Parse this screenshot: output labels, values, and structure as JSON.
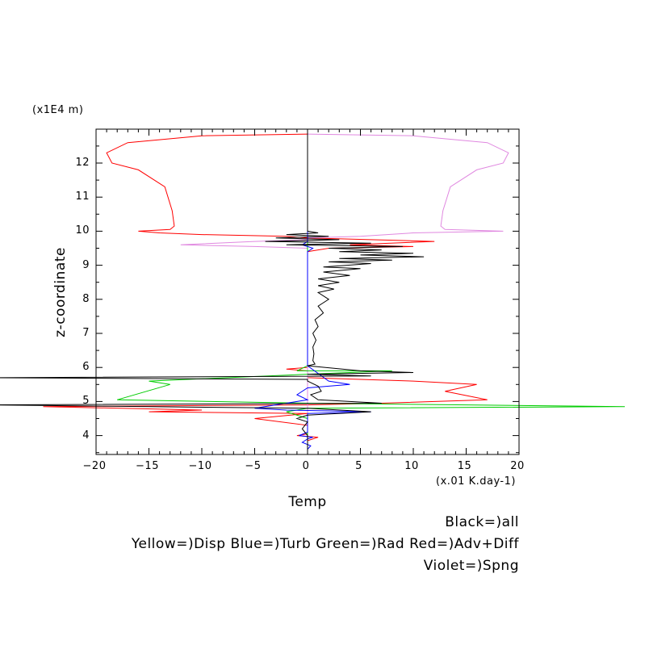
{
  "chart_data": {
    "type": "line",
    "xlabel": "Temp",
    "ylabel": "z-coordinate",
    "x_unit": "(x.01 K.day-1)",
    "y_unit": "(x1E4 m)",
    "xlim": [
      -20,
      20
    ],
    "ylim": [
      3.55,
      12.85
    ],
    "xticks": [
      -20,
      -15,
      -10,
      -5,
      0,
      5,
      10,
      15,
      20
    ],
    "yticks": [
      4,
      5,
      6,
      7,
      8,
      9,
      10,
      11,
      12
    ],
    "grid": false,
    "legend": [
      "Black=)all",
      "Yellow=)Disp Blue=)Turb Green=)Rad Red=)Adv+Diff",
      "Violet=)Spng"
    ],
    "colors": {
      "all": "#000000",
      "disp": "#ffff00",
      "turb": "#0000ff",
      "rad": "#00cc00",
      "advdiff": "#ff0000",
      "spng": "#e088e0"
    },
    "series": [
      {
        "key": "advdiff",
        "points": [
          [
            0,
            12.85
          ],
          [
            -10,
            12.8
          ],
          [
            -17,
            12.6
          ],
          [
            -19,
            12.3
          ],
          [
            -18.5,
            12.0
          ],
          [
            -16,
            11.8
          ],
          [
            -13.5,
            11.3
          ],
          [
            -12.8,
            10.6
          ],
          [
            -12.6,
            10.15
          ],
          [
            -13,
            10.05
          ],
          [
            -16,
            10.0
          ],
          [
            -14,
            9.95
          ],
          [
            -10,
            9.9
          ],
          [
            -2,
            9.85
          ],
          [
            0,
            9.8
          ],
          [
            12,
            9.7
          ],
          [
            4,
            9.6
          ],
          [
            10,
            9.55
          ],
          [
            2,
            9.5
          ],
          [
            0,
            9.4
          ],
          [
            0,
            6.0
          ],
          [
            -2,
            5.95
          ],
          [
            0,
            5.9
          ],
          [
            0,
            5.7
          ],
          [
            10,
            5.6
          ],
          [
            16,
            5.5
          ],
          [
            13,
            5.3
          ],
          [
            17,
            5.05
          ],
          [
            7,
            4.95
          ],
          [
            0,
            4.9
          ],
          [
            -25,
            4.85
          ],
          [
            -10,
            4.75
          ],
          [
            -15,
            4.7
          ],
          [
            0,
            4.65
          ],
          [
            -5,
            4.5
          ],
          [
            0,
            4.3
          ],
          [
            0,
            4.05
          ],
          [
            -1,
            4.0
          ],
          [
            1,
            3.95
          ],
          [
            0,
            3.85
          ],
          [
            0,
            3.6
          ]
        ]
      },
      {
        "key": "spng",
        "points": [
          [
            0,
            12.85
          ],
          [
            10,
            12.8
          ],
          [
            17,
            12.6
          ],
          [
            19,
            12.3
          ],
          [
            18.5,
            12.0
          ],
          [
            16,
            11.8
          ],
          [
            13.5,
            11.3
          ],
          [
            12.8,
            10.6
          ],
          [
            12.6,
            10.15
          ],
          [
            13,
            10.05
          ],
          [
            18.5,
            10.0
          ],
          [
            10,
            9.95
          ],
          [
            5,
            9.85
          ],
          [
            0,
            9.8
          ],
          [
            0,
            9.75
          ],
          [
            -5,
            9.7
          ],
          [
            -12,
            9.6
          ],
          [
            -5,
            9.55
          ],
          [
            0,
            9.5
          ],
          [
            0,
            3.6
          ]
        ]
      },
      {
        "key": "rad",
        "points": [
          [
            0,
            10.5
          ],
          [
            0,
            6.05
          ],
          [
            -1,
            5.9
          ],
          [
            8,
            5.9
          ],
          [
            0,
            5.8
          ],
          [
            -15,
            5.6
          ],
          [
            -13,
            5.5
          ],
          [
            -18,
            5.05
          ],
          [
            0,
            4.95
          ],
          [
            30,
            4.85
          ],
          [
            0,
            4.8
          ],
          [
            -2,
            4.7
          ],
          [
            0,
            4.5
          ],
          [
            0,
            3.6
          ]
        ]
      },
      {
        "key": "turb",
        "points": [
          [
            0,
            10.5
          ],
          [
            0,
            9.7
          ],
          [
            -0.5,
            9.6
          ],
          [
            0.5,
            9.5
          ],
          [
            0,
            9.4
          ],
          [
            0,
            6.05
          ],
          [
            2,
            5.6
          ],
          [
            4,
            5.5
          ],
          [
            0,
            5.4
          ],
          [
            -1,
            5.2
          ],
          [
            0,
            5.05
          ],
          [
            -2,
            4.95
          ],
          [
            -5,
            4.8
          ],
          [
            -2,
            4.75
          ],
          [
            6,
            4.7
          ],
          [
            0,
            4.65
          ],
          [
            0,
            4.1
          ],
          [
            -0.8,
            4.0
          ],
          [
            0.5,
            3.95
          ],
          [
            0,
            3.9
          ],
          [
            -0.5,
            3.8
          ],
          [
            0.3,
            3.7
          ],
          [
            0,
            3.6
          ]
        ]
      },
      {
        "key": "all",
        "points": [
          [
            0,
            12.85
          ],
          [
            0,
            10.0
          ],
          [
            1,
            9.95
          ],
          [
            -2,
            9.9
          ],
          [
            2,
            9.85
          ],
          [
            -3,
            9.8
          ],
          [
            3,
            9.75
          ],
          [
            -4,
            9.7
          ],
          [
            6,
            9.65
          ],
          [
            -2,
            9.6
          ],
          [
            9,
            9.55
          ],
          [
            2,
            9.5
          ],
          [
            7,
            9.45
          ],
          [
            3,
            9.4
          ],
          [
            10,
            9.35
          ],
          [
            5,
            9.3
          ],
          [
            11,
            9.25
          ],
          [
            3,
            9.2
          ],
          [
            8,
            9.15
          ],
          [
            2,
            9.1
          ],
          [
            6,
            9.05
          ],
          [
            1.5,
            8.95
          ],
          [
            5,
            8.9
          ],
          [
            1.5,
            8.8
          ],
          [
            4,
            8.7
          ],
          [
            1,
            8.6
          ],
          [
            3,
            8.5
          ],
          [
            1,
            8.4
          ],
          [
            2.5,
            8.3
          ],
          [
            1,
            8.2
          ],
          [
            2,
            8.0
          ],
          [
            1,
            7.8
          ],
          [
            1.5,
            7.6
          ],
          [
            0.7,
            7.4
          ],
          [
            1,
            7.2
          ],
          [
            0.5,
            7.0
          ],
          [
            0.8,
            6.8
          ],
          [
            0.5,
            6.6
          ],
          [
            0.6,
            6.4
          ],
          [
            0.5,
            6.2
          ],
          [
            0.7,
            6.1
          ],
          [
            0,
            6.05
          ],
          [
            5,
            5.9
          ],
          [
            10,
            5.85
          ],
          [
            0,
            5.8
          ],
          [
            6,
            5.75
          ],
          [
            -30,
            5.7
          ],
          [
            0,
            5.65
          ],
          [
            0,
            5.6
          ],
          [
            1,
            5.45
          ],
          [
            1.3,
            5.3
          ],
          [
            0.3,
            5.2
          ],
          [
            1,
            5.05
          ],
          [
            7,
            4.95
          ],
          [
            -30,
            4.9
          ],
          [
            0,
            4.8
          ],
          [
            6,
            4.7
          ],
          [
            0,
            4.6
          ],
          [
            -1,
            4.5
          ],
          [
            0,
            4.4
          ],
          [
            -0.5,
            4.2
          ],
          [
            0,
            4.0
          ],
          [
            0,
            3.6
          ]
        ]
      }
    ]
  }
}
